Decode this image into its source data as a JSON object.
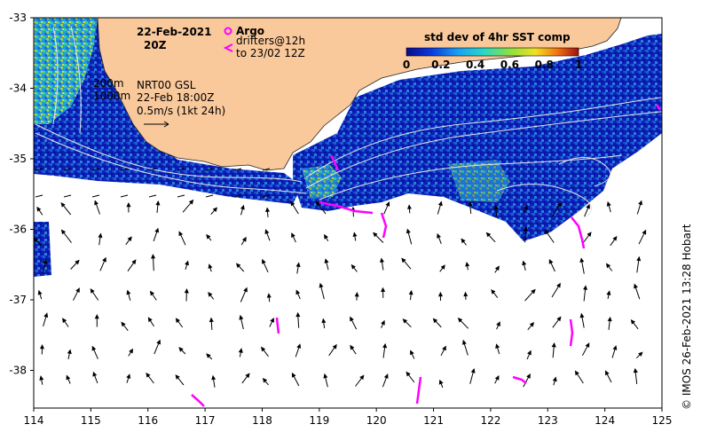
{
  "map": {
    "date_title": "22-Feb-2021",
    "time_title": "20Z",
    "argo_label": "Argo",
    "drifters_label_1": "drifters@12h",
    "drifters_label_2": "to 23/02 12Z",
    "colorbar_title": "std dev of 4hr SST comp",
    "colorbar_ticks": [
      "0",
      "0.2",
      "0.4",
      "0.6",
      "0.8",
      "1"
    ],
    "isobath_label_1": "200m",
    "isobath_label_2": "1000m",
    "current_product": "NRT00 GSL",
    "current_time": "22-Feb 18:00Z",
    "scale_text": "0.5m/s (1kt 24h)",
    "credit": "© IMOS 26-Feb-2021 13:28 Hobart",
    "lon_ticks": [
      "114",
      "115",
      "116",
      "117",
      "118",
      "119",
      "120",
      "121",
      "122",
      "123",
      "124",
      "125"
    ],
    "lat_ticks": [
      "-33",
      "-34",
      "-35",
      "-36",
      "-37",
      "-38"
    ],
    "colors": {
      "land": "#F9C89B",
      "ocean": "#FFFFFF",
      "sst_low": "#0A1CB0",
      "sst_mid": "#2E8CD6",
      "drifter": "#FF00FF",
      "current_vector": "#000000",
      "isobath": "#E6E6E6"
    }
  }
}
